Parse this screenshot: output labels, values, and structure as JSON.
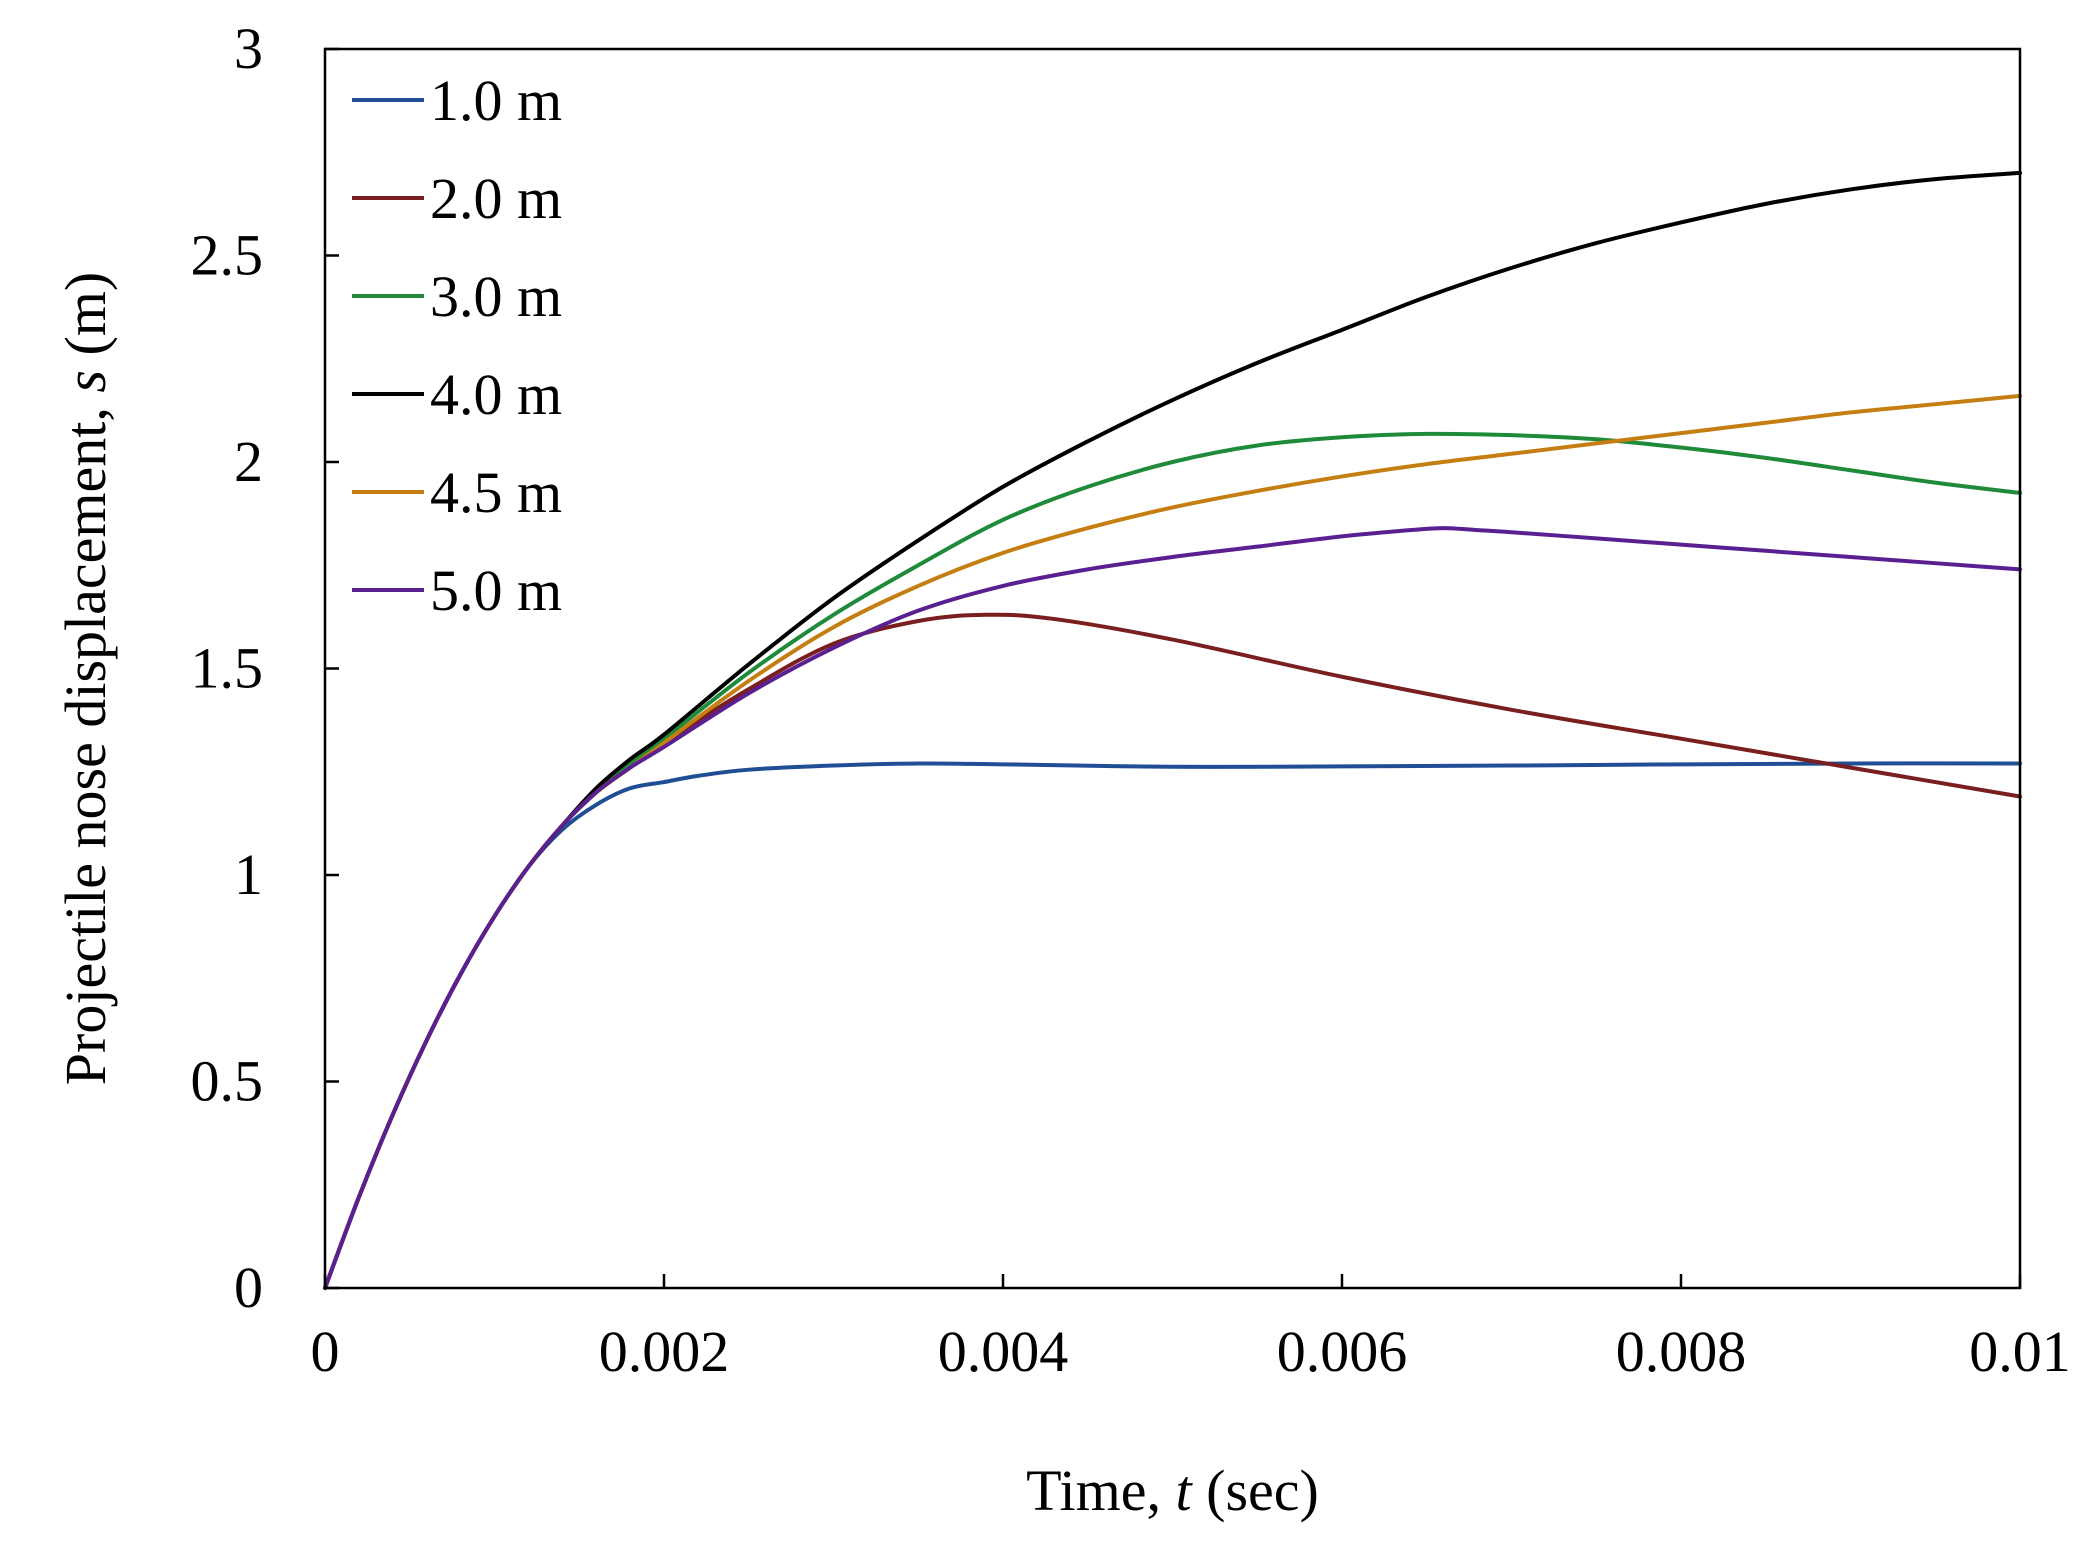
{
  "chart_data": {
    "type": "line",
    "title": "",
    "xlabel": "Time, ",
    "xlabel_var": "t",
    "xlabel_unit": " (sec)",
    "ylabel": "Projectile nose displacement, ",
    "ylabel_var": "s",
    "ylabel_unit": " (m)",
    "xlim": [
      0,
      0.01
    ],
    "ylim": [
      0,
      3
    ],
    "x_ticks": [
      0,
      0.002,
      0.004,
      0.006,
      0.008,
      0.01
    ],
    "x_tick_labels": [
      "0",
      "0.002",
      "0.004",
      "0.006",
      "0.008",
      "0.01"
    ],
    "y_ticks": [
      0,
      0.5,
      1,
      1.5,
      2,
      2.5,
      3
    ],
    "y_tick_labels": [
      "0",
      "0.5",
      "1",
      "1.5",
      "2",
      "2.5",
      "3"
    ],
    "grid": false,
    "legend_position": "top-left",
    "series": [
      {
        "name": "1.0 m",
        "color": "#1f4e94",
        "x": [
          0,
          0.0002,
          0.0004,
          0.0006,
          0.0008,
          0.001,
          0.0012,
          0.0014,
          0.0016,
          0.0018,
          0.002,
          0.0022,
          0.0025,
          0.003,
          0.0035,
          0.004,
          0.005,
          0.006,
          0.007,
          0.008,
          0.009,
          0.01
        ],
        "values": [
          0,
          0.22,
          0.42,
          0.6,
          0.76,
          0.9,
          1.02,
          1.11,
          1.17,
          1.21,
          1.225,
          1.24,
          1.255,
          1.265,
          1.27,
          1.268,
          1.262,
          1.263,
          1.265,
          1.268,
          1.27,
          1.27
        ]
      },
      {
        "name": "2.0 m",
        "color": "#7a1f1f",
        "x": [
          0,
          0.0002,
          0.0004,
          0.0006,
          0.0008,
          0.001,
          0.0012,
          0.0014,
          0.0016,
          0.0018,
          0.002,
          0.0025,
          0.003,
          0.0035,
          0.0039,
          0.0043,
          0.005,
          0.006,
          0.007,
          0.008,
          0.009,
          0.01
        ],
        "values": [
          0,
          0.22,
          0.42,
          0.6,
          0.76,
          0.9,
          1.02,
          1.12,
          1.2,
          1.26,
          1.32,
          1.45,
          1.56,
          1.615,
          1.63,
          1.62,
          1.57,
          1.48,
          1.4,
          1.33,
          1.26,
          1.19
        ]
      },
      {
        "name": "3.0 m",
        "color": "#1e8a3a",
        "x": [
          0,
          0.0002,
          0.0004,
          0.0006,
          0.0008,
          0.001,
          0.0012,
          0.0014,
          0.0016,
          0.0018,
          0.002,
          0.0025,
          0.003,
          0.0035,
          0.004,
          0.0045,
          0.005,
          0.0055,
          0.006,
          0.0065,
          0.007,
          0.0075,
          0.008,
          0.0085,
          0.009,
          0.0095,
          0.01
        ],
        "values": [
          0,
          0.22,
          0.42,
          0.6,
          0.76,
          0.9,
          1.02,
          1.12,
          1.2,
          1.27,
          1.33,
          1.49,
          1.63,
          1.75,
          1.86,
          1.94,
          2.0,
          2.04,
          2.06,
          2.068,
          2.065,
          2.055,
          2.035,
          2.01,
          1.98,
          1.95,
          1.925
        ]
      },
      {
        "name": "4.0 m",
        "color": "#000000",
        "x": [
          0,
          0.0002,
          0.0004,
          0.0006,
          0.0008,
          0.001,
          0.0012,
          0.0014,
          0.0016,
          0.0018,
          0.002,
          0.0025,
          0.003,
          0.0035,
          0.004,
          0.0045,
          0.005,
          0.0055,
          0.006,
          0.0065,
          0.007,
          0.0075,
          0.008,
          0.0085,
          0.009,
          0.0095,
          0.01
        ],
        "values": [
          0,
          0.22,
          0.42,
          0.6,
          0.76,
          0.9,
          1.02,
          1.12,
          1.21,
          1.28,
          1.34,
          1.51,
          1.67,
          1.81,
          1.94,
          2.05,
          2.15,
          2.24,
          2.32,
          2.4,
          2.47,
          2.53,
          2.58,
          2.625,
          2.66,
          2.685,
          2.7
        ]
      },
      {
        "name": "4.5 m",
        "color": "#c47e12",
        "x": [
          0,
          0.0002,
          0.0004,
          0.0006,
          0.0008,
          0.001,
          0.0012,
          0.0014,
          0.0016,
          0.0018,
          0.002,
          0.0025,
          0.003,
          0.0035,
          0.004,
          0.0045,
          0.005,
          0.0055,
          0.006,
          0.0065,
          0.007,
          0.0075,
          0.008,
          0.0085,
          0.009,
          0.0095,
          0.01
        ],
        "values": [
          0,
          0.22,
          0.42,
          0.6,
          0.76,
          0.9,
          1.02,
          1.12,
          1.2,
          1.26,
          1.32,
          1.47,
          1.6,
          1.7,
          1.78,
          1.84,
          1.89,
          1.93,
          1.965,
          1.995,
          2.02,
          2.045,
          2.07,
          2.095,
          2.12,
          2.14,
          2.16
        ]
      },
      {
        "name": "5.0 m",
        "color": "#5a1f91",
        "x": [
          0,
          0.0002,
          0.0004,
          0.0006,
          0.0008,
          0.001,
          0.0012,
          0.0014,
          0.0016,
          0.0018,
          0.002,
          0.0025,
          0.003,
          0.0035,
          0.004,
          0.0045,
          0.005,
          0.0055,
          0.006,
          0.0064,
          0.0066,
          0.0068,
          0.007,
          0.0075,
          0.008,
          0.0085,
          0.009,
          0.0095,
          0.01
        ],
        "values": [
          0,
          0.22,
          0.42,
          0.6,
          0.76,
          0.9,
          1.02,
          1.12,
          1.2,
          1.26,
          1.31,
          1.44,
          1.55,
          1.64,
          1.7,
          1.74,
          1.77,
          1.795,
          1.82,
          1.835,
          1.84,
          1.835,
          1.83,
          1.815,
          1.8,
          1.785,
          1.77,
          1.755,
          1.74
        ]
      }
    ]
  }
}
